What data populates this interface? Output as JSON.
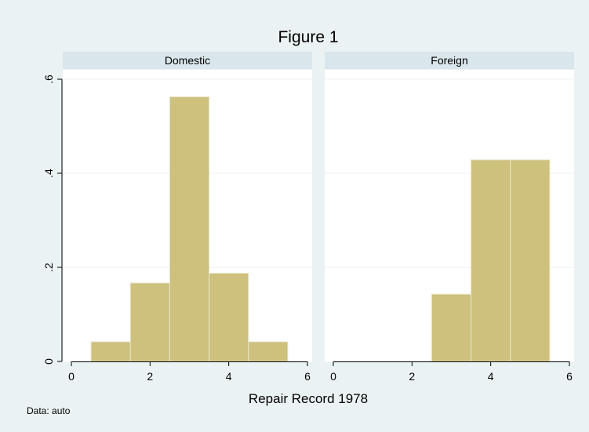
{
  "chart_data": {
    "type": "bar",
    "title": "Figure 1",
    "xlabel": "Repair Record 1978",
    "ylabel": "",
    "note": "Data: auto",
    "xlim": [
      0,
      6
    ],
    "ylim": [
      0,
      0.6
    ],
    "xticks": [
      0,
      2,
      4,
      6
    ],
    "xtick_labels": [
      "0",
      "2",
      "4",
      "6"
    ],
    "yticks": [
      0,
      0.2,
      0.4,
      0.6
    ],
    "ytick_labels": [
      "0",
      ".2",
      ".4",
      ".6"
    ],
    "grid": true,
    "bin_width": 1,
    "panels": [
      {
        "label": "Domestic",
        "bins": [
          {
            "x": 1,
            "value": 0.0417
          },
          {
            "x": 2,
            "value": 0.1667
          },
          {
            "x": 3,
            "value": 0.5625
          },
          {
            "x": 4,
            "value": 0.1875
          },
          {
            "x": 5,
            "value": 0.0417
          }
        ]
      },
      {
        "label": "Foreign",
        "bins": [
          {
            "x": 3,
            "value": 0.1429
          },
          {
            "x": 4,
            "value": 0.4286
          },
          {
            "x": 5,
            "value": 0.4286
          }
        ]
      }
    ],
    "colors": {
      "background": "#eaf2f3",
      "plot_bg": "#ffffff",
      "strip_bg": "#d9e6eb",
      "bar_fill": "#cdc17d",
      "bar_stroke": "#e9e4c8",
      "title": "#1a476f",
      "grid": "#eaf2f3",
      "axis": "#000000"
    }
  }
}
